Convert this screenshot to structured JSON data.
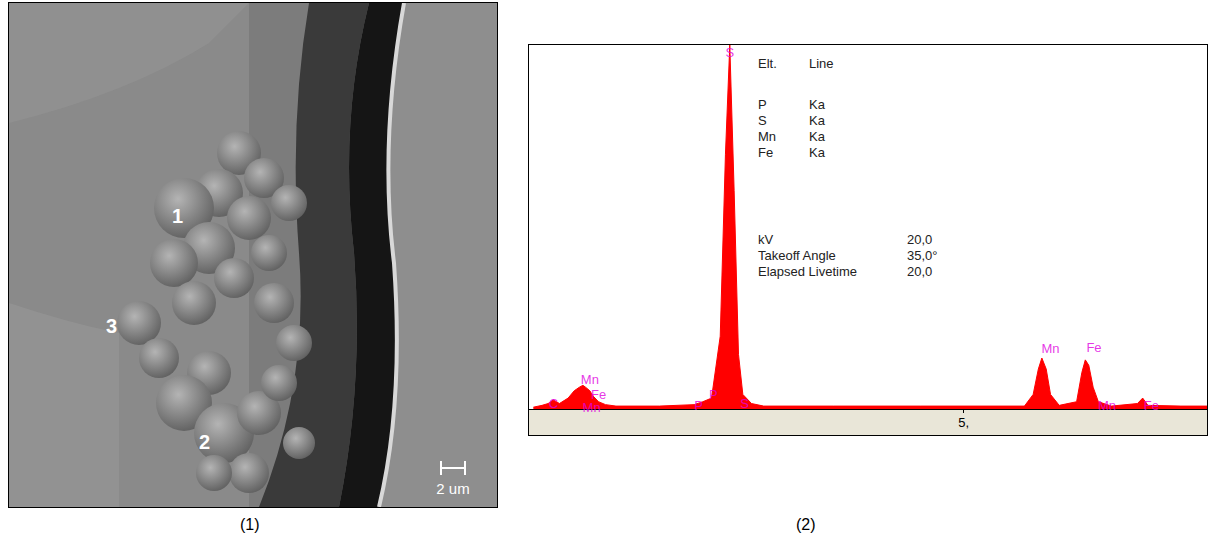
{
  "chart_data": {
    "type": "area",
    "color": "#ff0000",
    "x": [
      0.05,
      0.15,
      0.22,
      0.28,
      0.35,
      0.45,
      0.52,
      0.58,
      0.62,
      0.65,
      0.7,
      0.74,
      0.8,
      0.88,
      1.0,
      1.5,
      1.9,
      2.0,
      2.1,
      2.2,
      2.26,
      2.31,
      2.36,
      2.41,
      2.46,
      2.5,
      2.56,
      2.7,
      3.5,
      4.5,
      5.7,
      5.8,
      5.86,
      5.9,
      5.95,
      6.0,
      6.1,
      6.3,
      6.36,
      6.4,
      6.44,
      6.49,
      6.55,
      6.7,
      7.0,
      7.06,
      7.12,
      7.5,
      7.8
    ],
    "values": [
      0.5,
      1,
      1.5,
      2.5,
      1.5,
      3,
      5,
      6,
      6.5,
      6,
      5,
      3.5,
      2,
      1.2,
      0.8,
      0.8,
      1.2,
      2,
      3,
      20,
      70,
      100,
      60,
      15,
      4,
      3,
      1.5,
      0.8,
      0.8,
      0.8,
      0.8,
      4,
      11,
      14,
      11,
      4,
      1,
      2,
      10,
      13.5,
      12,
      6,
      2,
      0.8,
      1.5,
      3,
      1,
      0.8,
      0.8
    ],
    "xlim": [
      0,
      7.8
    ],
    "xticks": [
      {
        "value": 5,
        "label": "5,"
      }
    ],
    "ylim": [
      0,
      100
    ],
    "tick_labels": "x",
    "grid": false,
    "annotations": [
      {
        "text": "C",
        "x": 0.28,
        "y": 1.5
      },
      {
        "text": "Mn",
        "x": 0.7,
        "y": 8
      },
      {
        "text": "Fe",
        "x": 0.8,
        "y": 4
      },
      {
        "text": "Mn",
        "x": 0.72,
        "y": 0.5
      },
      {
        "text": "P",
        "x": 2.12,
        "y": 4
      },
      {
        "text": "P",
        "x": 1.95,
        "y": 1
      },
      {
        "text": "S",
        "x": 2.31,
        "y": 98
      },
      {
        "text": "S",
        "x": 2.48,
        "y": 1.5
      },
      {
        "text": "Mn",
        "x": 6.0,
        "y": 16.5
      },
      {
        "text": "Fe",
        "x": 6.5,
        "y": 17
      },
      {
        "text": "Mn",
        "x": 6.65,
        "y": 1
      },
      {
        "text": "Fe",
        "x": 7.16,
        "y": 1
      }
    ],
    "info": {
      "header": [
        "Elt.",
        "Line"
      ],
      "rows": [
        [
          "P",
          "Ka"
        ],
        [
          "S",
          "Ka"
        ],
        [
          "Mn",
          "Ka"
        ],
        [
          "Fe",
          "Ka"
        ]
      ],
      "settings": [
        [
          "kV",
          "20,0"
        ],
        [
          "Takeoff Angle",
          "35,0°"
        ],
        [
          "Elapsed Livetime",
          "20,0"
        ]
      ]
    },
    "caption": "(2)"
  },
  "image_panel": {
    "labels": [
      "1",
      "3",
      "2"
    ],
    "scale_bar": "2 um",
    "caption": "(1)"
  }
}
